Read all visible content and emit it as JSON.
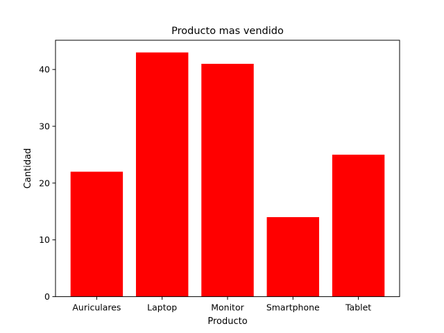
{
  "chart_data": {
    "type": "bar",
    "title": "Producto mas vendido",
    "xlabel": "Producto",
    "ylabel": "Cantidad",
    "categories": [
      "Auriculares",
      "Laptop",
      "Monitor",
      "Smartphone",
      "Tablet"
    ],
    "values": [
      22,
      43,
      41,
      14,
      25
    ],
    "ylim": [
      0,
      45.15
    ],
    "yticks": [
      0,
      10,
      20,
      30,
      40
    ],
    "grid": false,
    "bar_color": "#ff0000"
  }
}
